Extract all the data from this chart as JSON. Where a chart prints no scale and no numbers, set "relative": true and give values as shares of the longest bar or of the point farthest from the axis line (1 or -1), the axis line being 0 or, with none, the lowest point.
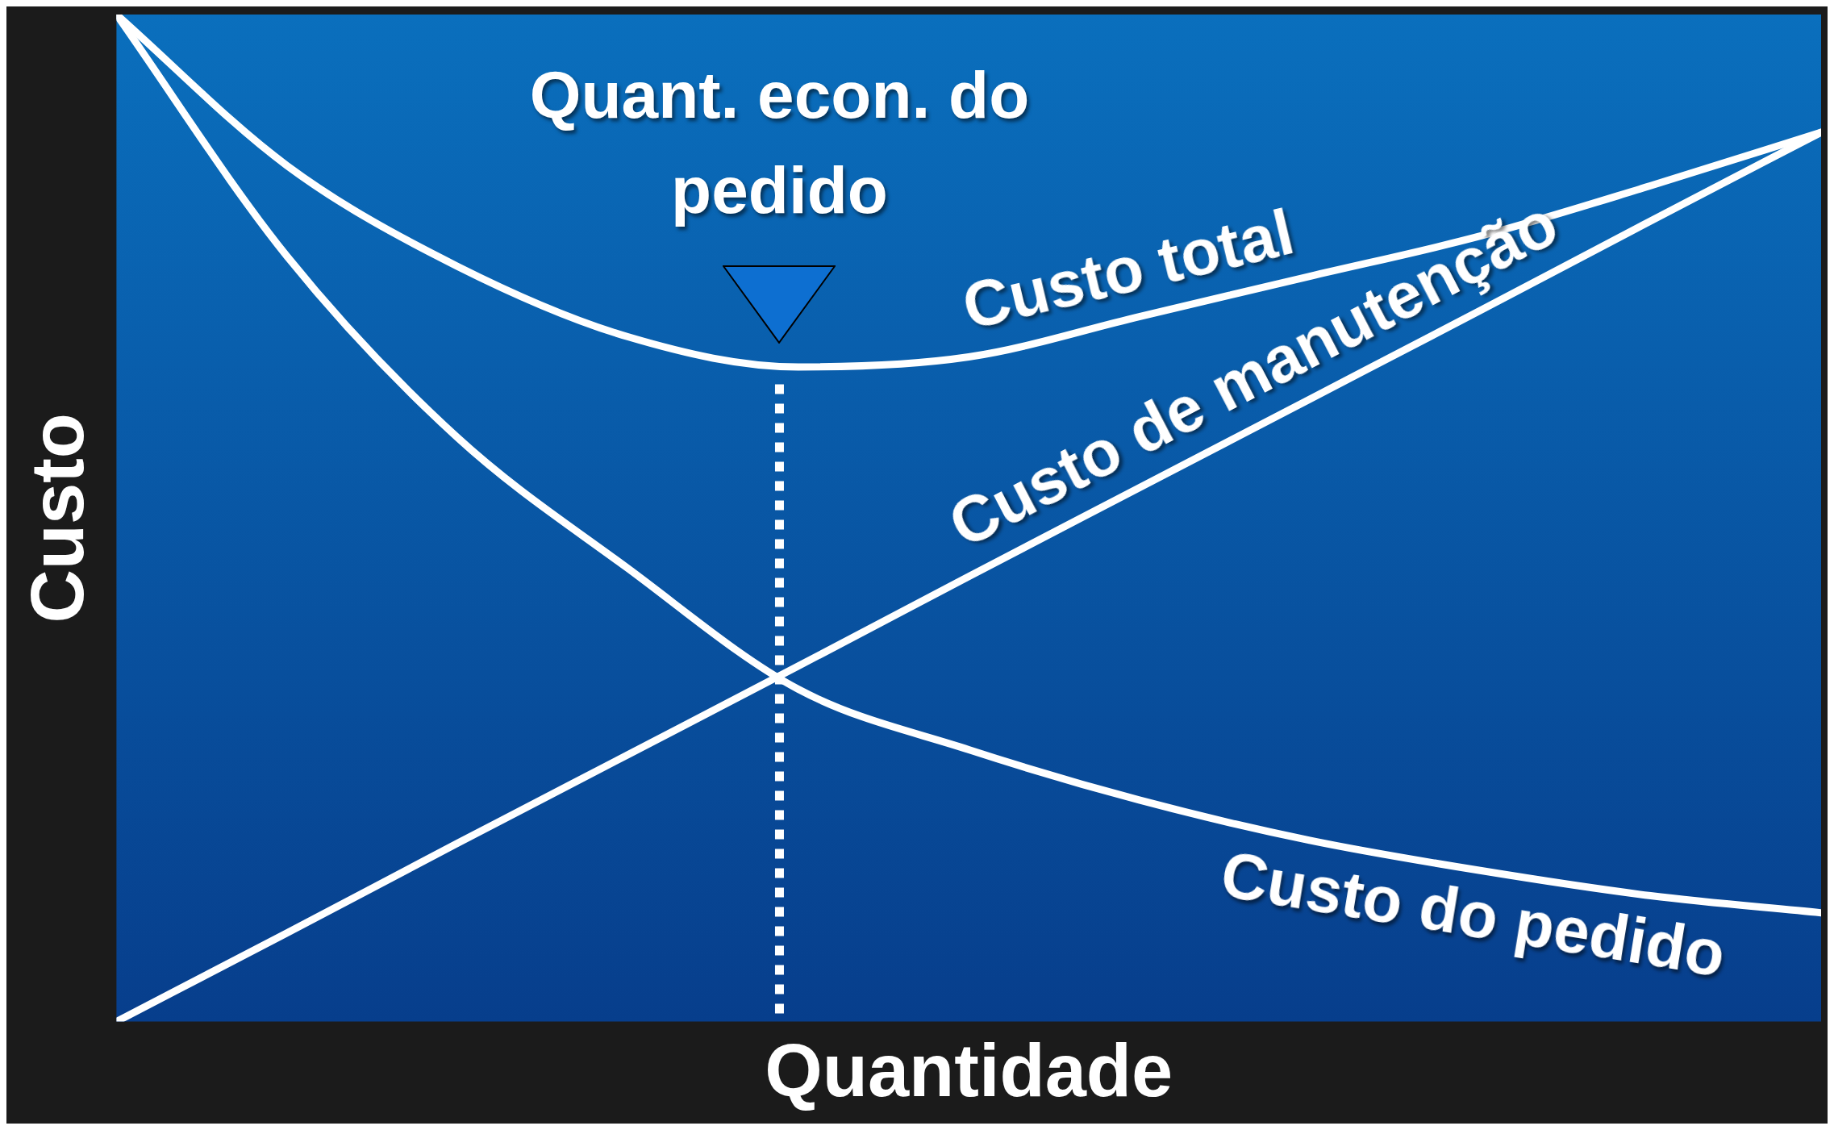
{
  "chart_data": {
    "type": "line",
    "relative": true,
    "xlabel": "Quantidade",
    "ylabel": "Custo",
    "categories": [
      null,
      null,
      null,
      null,
      null,
      null,
      null,
      null,
      null,
      null,
      null
    ],
    "grid": false,
    "legend": false,
    "marker": "none",
    "line_style": "solid",
    "series": [
      {
        "name": "Custo total",
        "color": "#ffffff",
        "values": [
          1.0,
          0.85,
          0.75,
          0.68,
          0.65,
          0.66,
          0.7,
          0.74,
          0.78,
          0.83,
          0.883
        ]
      },
      {
        "name": "Custo de manutenção",
        "color": "#ffffff",
        "values": [
          0,
          0.088,
          0.177,
          0.265,
          0.353,
          0.442,
          0.53,
          0.618,
          0.706,
          0.795,
          0.883
        ]
      },
      {
        "name": "Custo do pedido",
        "color": "#ffffff",
        "values": [
          1.0,
          0.76,
          0.58,
          0.45,
          0.33,
          0.27,
          0.22,
          0.18,
          0.15,
          0.125,
          0.108
        ]
      }
    ],
    "annotations": [
      "Quant. econ. do pedido"
    ]
  }
}
